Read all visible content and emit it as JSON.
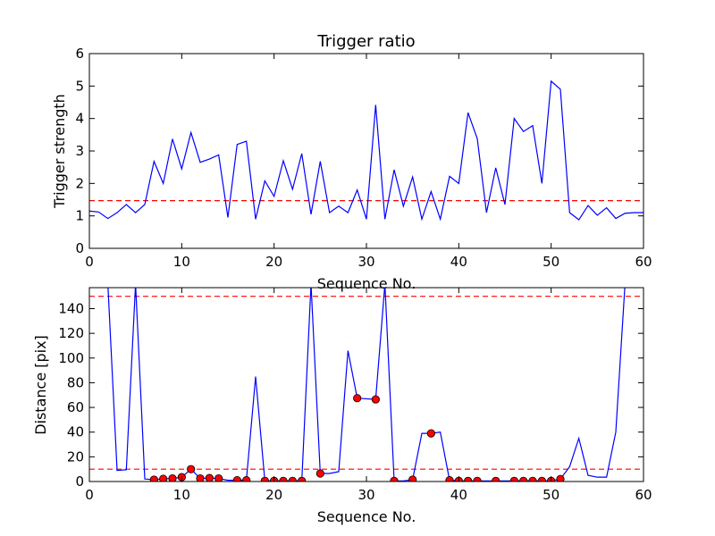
{
  "chart_data": [
    {
      "type": "line",
      "title": "Trigger ratio",
      "xlabel": "Sequence No.",
      "ylabel": "Trigger strength",
      "xlim": [
        0,
        60
      ],
      "ylim": [
        0,
        6
      ],
      "xticks": [
        0,
        10,
        20,
        30,
        40,
        50,
        60
      ],
      "yticks": [
        0,
        1,
        2,
        3,
        4,
        5,
        6
      ],
      "grid": false,
      "series": [
        {
          "color": "#0000ff",
          "x": [
            0,
            1,
            2,
            3,
            4,
            5,
            6,
            7,
            8,
            9,
            10,
            11,
            12,
            13,
            14,
            15,
            16,
            17,
            18,
            19,
            20,
            21,
            22,
            23,
            24,
            25,
            26,
            27,
            28,
            29,
            30,
            31,
            32,
            33,
            34,
            35,
            36,
            37,
            38,
            39,
            40,
            41,
            42,
            43,
            44,
            45,
            46,
            47,
            48,
            49,
            50,
            51,
            52,
            53,
            54,
            55,
            56,
            57,
            58,
            59,
            60
          ],
          "y": [
            1.15,
            1.12,
            0.92,
            1.1,
            1.35,
            1.1,
            1.35,
            2.68,
            2.0,
            3.37,
            2.45,
            3.57,
            2.65,
            2.75,
            2.88,
            0.95,
            3.2,
            3.3,
            0.9,
            2.08,
            1.6,
            2.7,
            1.82,
            2.92,
            1.05,
            2.68,
            1.1,
            1.3,
            1.1,
            1.8,
            0.9,
            4.42,
            0.9,
            2.42,
            1.3,
            2.2,
            0.9,
            1.75,
            0.9,
            2.22,
            2.0,
            4.18,
            3.38,
            1.1,
            2.48,
            1.35,
            4.0,
            3.6,
            3.78,
            2.0,
            5.15,
            4.9,
            1.1,
            0.88,
            1.32,
            1.02,
            1.25,
            0.92,
            1.08,
            1.1,
            1.1
          ]
        }
      ],
      "reference_lines": [
        {
          "axis": "y",
          "value": 1.47,
          "color": "#ff0000",
          "style": "dashed"
        }
      ]
    },
    {
      "type": "line",
      "xlabel": "Sequence No.",
      "ylabel": "Distance [pix]",
      "xlim": [
        0,
        60
      ],
      "ylim": [
        0,
        157
      ],
      "xticks": [
        0,
        10,
        20,
        30,
        40,
        50,
        60
      ],
      "yticks": [
        0,
        20,
        40,
        60,
        80,
        100,
        120,
        140
      ],
      "grid": false,
      "series": [
        {
          "color": "#0000ff",
          "x": [
            2,
            3,
            4,
            5,
            6,
            7,
            8,
            9,
            10,
            11,
            12,
            13,
            14,
            15,
            16,
            17,
            18,
            19,
            20,
            21,
            22,
            23,
            24,
            25,
            26,
            27,
            28,
            29,
            31,
            32,
            33,
            34,
            35,
            36,
            37,
            38,
            39,
            40,
            41,
            42,
            43,
            44,
            45,
            46,
            47,
            48,
            49,
            50,
            51,
            52,
            53,
            54,
            55,
            56,
            57,
            58
          ],
          "y": [
            160,
            9,
            9.5,
            160,
            2,
            1.5,
            2.2,
            2.5,
            3.5,
            10,
            2.5,
            2.8,
            2.5,
            1,
            1,
            1,
            85,
            0.5,
            0.5,
            0.5,
            0.5,
            0.5,
            160,
            6.5,
            6.5,
            8,
            106,
            67.5,
            66.5,
            160,
            0.5,
            0.5,
            1.5,
            39,
            39,
            40,
            1,
            0.5,
            0.5,
            0.5,
            0.5,
            0.5,
            0.5,
            0.5,
            0.5,
            0.5,
            0.5,
            0.5,
            2,
            12,
            35,
            5,
            3.5,
            3.5,
            40,
            160
          ]
        },
        {
          "marker": "circle",
          "color": "#ff0000",
          "x": [
            7,
            8,
            9,
            10,
            11,
            12,
            13,
            14,
            16,
            17,
            19,
            20,
            21,
            22,
            23,
            25,
            29,
            31,
            33,
            35,
            37,
            39,
            40,
            41,
            42,
            44,
            46,
            47,
            48,
            49,
            50,
            51
          ],
          "y": [
            1.5,
            2.2,
            2.5,
            3.5,
            10,
            2.5,
            2.8,
            2.5,
            1,
            1,
            0.5,
            0.5,
            0.5,
            0.5,
            0.5,
            6.5,
            67.5,
            66.5,
            0.5,
            1.5,
            39,
            1,
            0.5,
            0.5,
            0.5,
            0.5,
            0.5,
            0.5,
            0.5,
            0.5,
            0.5,
            2
          ]
        }
      ],
      "reference_lines": [
        {
          "axis": "y",
          "value": 10,
          "color": "#ff0000",
          "style": "dashed"
        },
        {
          "axis": "y",
          "value": 150,
          "color": "#ff0000",
          "style": "dashed"
        }
      ]
    }
  ]
}
